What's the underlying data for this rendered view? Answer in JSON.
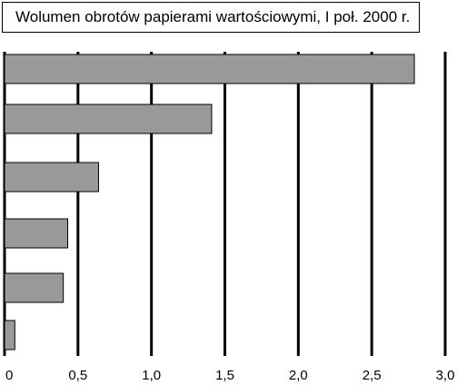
{
  "chart_data": {
    "type": "bar",
    "orientation": "horizontal",
    "title": "Wolumen obrotów papierami wartościowymi, I poł. 2000 r.",
    "categories": [
      "",
      "",
      "",
      "",
      "",
      ""
    ],
    "values": [
      2.79,
      1.41,
      0.64,
      0.43,
      0.4,
      0.07
    ],
    "xlim": [
      0,
      3.0
    ],
    "xticks": [
      "0",
      "0,5",
      "1,0",
      "1,5",
      "2,0",
      "2,5",
      "3,0"
    ],
    "grid": true,
    "colors": {
      "bar_fill": "#999999",
      "bar_stroke": "#000000",
      "grid": "#000000"
    }
  }
}
